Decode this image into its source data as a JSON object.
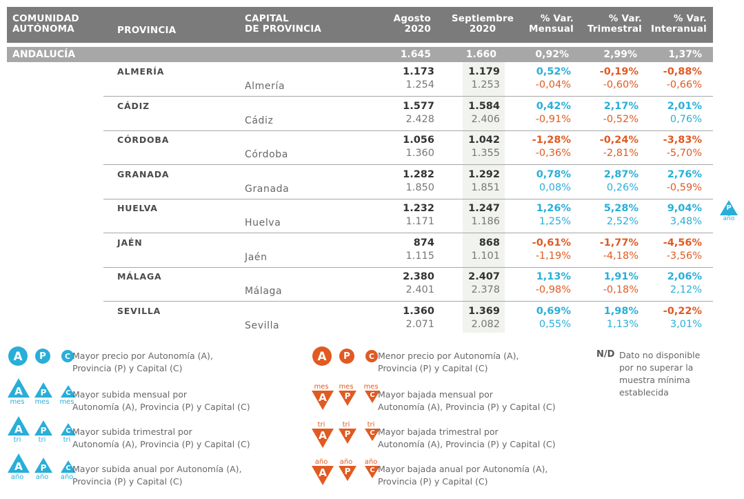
{
  "header": {
    "comunidad": "COMUNIDAD\nAUTÓNOMA",
    "provincia": "PROVINCIA",
    "capital": "CAPITAL\nDE PROVINCIA",
    "agosto": "Agosto\n2020",
    "septiembre": "Septiembre\n2020",
    "var_mensual": "% Var.\nMensual",
    "var_trimestral": "% Var.\nTrimestral",
    "var_interanual": "% Var.\nInteranual"
  },
  "region": {
    "name": "ANDALUCÍA",
    "agosto": "1.645",
    "septiembre": "1.660",
    "mensual": "0,92%",
    "trimestral": "2,99%",
    "interanual": "1,37%"
  },
  "provinces": [
    {
      "name": "ALMERÍA",
      "capital": "Almería",
      "ago_p": "1.173",
      "sep_p": "1.179",
      "ago_c": "1.254",
      "sep_c": "1.253",
      "men_p": "0,52%",
      "tri_p": "-0,19%",
      "int_p": "-0,88%",
      "men_c": "-0,04%",
      "tri_c": "-0,60%",
      "int_c": "-0,66%"
    },
    {
      "name": "CÁDIZ",
      "capital": "Cádiz",
      "ago_p": "1.577",
      "sep_p": "1.584",
      "ago_c": "2.428",
      "sep_c": "2.406",
      "men_p": "0,42%",
      "tri_p": "2,17%",
      "int_p": "2,01%",
      "men_c": "-0,91%",
      "tri_c": "-0,52%",
      "int_c": "0,76%"
    },
    {
      "name": "CÓRDOBA",
      "capital": "Córdoba",
      "ago_p": "1.056",
      "sep_p": "1.042",
      "ago_c": "1.360",
      "sep_c": "1.355",
      "men_p": "-1,28%",
      "tri_p": "-0,24%",
      "int_p": "-3,83%",
      "men_c": "-0,36%",
      "tri_c": "-2,81%",
      "int_c": "-5,70%"
    },
    {
      "name": "GRANADA",
      "capital": "Granada",
      "ago_p": "1.282",
      "sep_p": "1.292",
      "ago_c": "1.850",
      "sep_c": "1.851",
      "men_p": "0,78%",
      "tri_p": "2,87%",
      "int_p": "2,76%",
      "men_c": "0,08%",
      "tri_c": "0,26%",
      "int_c": "-0,59%"
    },
    {
      "name": "HUELVA",
      "capital": "Huelva",
      "ago_p": "1.232",
      "sep_p": "1.247",
      "ago_c": "1.171",
      "sep_c": "1.186",
      "men_p": "1,26%",
      "tri_p": "5,28%",
      "int_p": "9,04%",
      "men_c": "1,25%",
      "tri_c": "2,52%",
      "int_c": "3,48%"
    },
    {
      "name": "JAÉN",
      "capital": "Jaén",
      "ago_p": "874",
      "sep_p": "868",
      "ago_c": "1.115",
      "sep_c": "1.101",
      "men_p": "-0,61%",
      "tri_p": "-1,77%",
      "int_p": "-4,56%",
      "men_c": "-1,19%",
      "tri_c": "-4,18%",
      "int_c": "-3,56%"
    },
    {
      "name": "MÁLAGA",
      "capital": "Málaga",
      "ago_p": "2.380",
      "sep_p": "2.407",
      "ago_c": "2.401",
      "sep_c": "2.378",
      "men_p": "1,13%",
      "tri_p": "1,91%",
      "int_p": "2,06%",
      "men_c": "-0,98%",
      "tri_c": "-0,18%",
      "int_c": "2,12%"
    },
    {
      "name": "SEVILLA",
      "capital": "Sevilla",
      "ago_p": "1.360",
      "sep_p": "1.369",
      "ago_c": "2.071",
      "sep_c": "2.082",
      "men_p": "0,69%",
      "tri_p": "1,98%",
      "int_p": "-0,22%",
      "men_c": "0,55%",
      "tri_c": "1,13%",
      "int_c": "3,01%"
    }
  ],
  "side_icon": {
    "letter": "P",
    "caption": "año"
  },
  "legend": {
    "letters": [
      "A",
      "P",
      "C"
    ],
    "captions": {
      "mes": "mes",
      "tri": "tri",
      "ano": "año"
    },
    "max_price": "Mayor precio por Autonomía (A),\nProvincia (P) y Capital (C)",
    "max_month": "Mayor subida mensual por\nAutonomía (A), Provincia (P) y Capital (C)",
    "max_quarter": "Mayor subida trimestral por\nAutonomía (A), Provincia (P) y Capital (C)",
    "max_year": "Mayor subida anual por Autonomía (A),\nProvincia (P) y Capital (C)",
    "min_price": "Menor precio por Autonomía (A),\nProvincia (P) y Capital (C)",
    "min_month": "Mayor bajada mensual por\nAutonomía (A), Provincia (P) y Capital (C)",
    "min_quarter": "Mayor bajada trimestral por\nAutonomía (A), Provincia (P) y Capital (C)",
    "min_year": "Mayor bajada anual por Autonomía (A),\nProvincia (P) y Capital (C)",
    "nd_label": "N/D",
    "nd_text": "Dato no disponible\npor no superar la\nmuestra mínima\nestablecida"
  },
  "colors": {
    "blue": "#29aed8",
    "orange": "#e05a22",
    "header": "#7b7b7b",
    "region": "#a7a7a7"
  }
}
